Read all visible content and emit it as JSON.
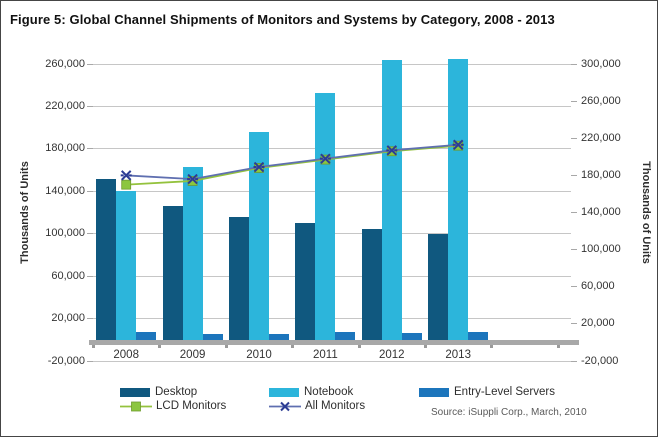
{
  "figure_title": "Figure 5: Global Channel Shipments of Monitors and Systems by Category, 2008 - 2013",
  "source_note": "Source: iSuppli Corp., March, 2010",
  "chart_data": {
    "type": "bar",
    "subtype": "grouped-bar-with-line-overlay-dual-axis",
    "title": "Figure 5: Global Channel Shipments of Monitors and Systems by Category, 2008 - 2013",
    "categories": [
      "2008",
      "2009",
      "2010",
      "2011",
      "2012",
      "2013"
    ],
    "series": [
      {
        "name": "Desktop",
        "type": "bar",
        "axis": "left",
        "color": "#10587f",
        "values": [
          152000,
          126000,
          116000,
          110000,
          104000,
          100000
        ]
      },
      {
        "name": "Notebook",
        "type": "bar",
        "axis": "left",
        "color": "#2cb5db",
        "values": [
          140000,
          163000,
          196000,
          233000,
          264000,
          265000
        ]
      },
      {
        "name": "Entry-Level Servers",
        "type": "bar",
        "axis": "left",
        "color": "#1c75bc",
        "values": [
          7000,
          5000,
          5500,
          7000,
          6500,
          7500
        ]
      },
      {
        "name": "LCD Monitors",
        "type": "line",
        "axis": "right",
        "color": "#94c23d",
        "marker": "square",
        "marker_color": "#8cc63f",
        "values": [
          170000,
          174000,
          188000,
          197000,
          206000,
          212000
        ]
      },
      {
        "name": "All Monitors",
        "type": "line",
        "axis": "right",
        "color": "#5f6fb0",
        "marker": "x",
        "marker_color": "#2c3c94",
        "values": [
          180000,
          176000,
          189000,
          198000,
          207000,
          213000
        ]
      }
    ],
    "left_axis": {
      "title": "Thousands of Units",
      "min": -20000,
      "max": 260000,
      "step": 40000,
      "tick_labels": [
        "260,000",
        "220,000",
        "180,000",
        "140,000",
        "100,000",
        "60,000",
        "20,000",
        "-20,000"
      ]
    },
    "right_axis": {
      "title": "Thousands of Units",
      "min": -20000,
      "max": 300000,
      "step": 40000,
      "tick_labels": [
        "300,000",
        "260,000",
        "220,000",
        "180,000",
        "140,000",
        "100,000",
        "60,000",
        "20,000",
        "-20,000"
      ]
    },
    "grid": true,
    "legend_position": "bottom",
    "legend": [
      "Desktop",
      "Notebook",
      "Entry-Level Servers",
      "LCD Monitors",
      "All Monitors"
    ],
    "ylabel_left": "Thousands of Units",
    "ylabel_right": "Thousands of Units"
  },
  "colors": {
    "grid": "#c6c6c6",
    "axis_bar": "#a8a8a8",
    "text": "#333333",
    "border": "#454545"
  }
}
